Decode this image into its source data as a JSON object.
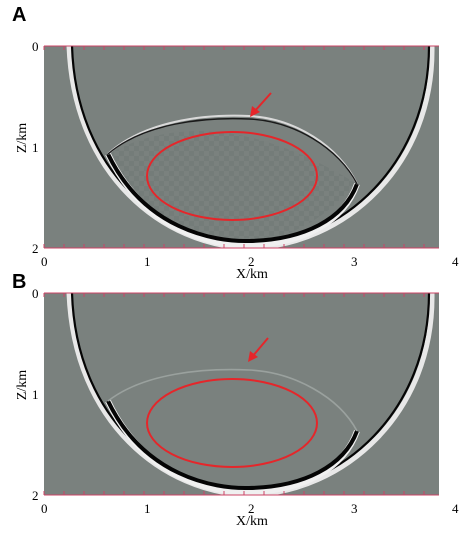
{
  "figure": {
    "panels": [
      {
        "letter": "A",
        "xlabel": "X/km",
        "ylabel": "Z/km",
        "xticks": [
          "0",
          "1",
          "2",
          "3",
          "4"
        ],
        "yticks": [
          "0",
          "1",
          "2"
        ]
      },
      {
        "letter": "B",
        "xlabel": "X/km",
        "ylabel": "Z/km",
        "xticks": [
          "0",
          "1",
          "2",
          "3",
          "4"
        ],
        "yticks": [
          "0",
          "1",
          "2"
        ]
      }
    ],
    "colors": {
      "background": "#7a817e",
      "wavefront": "#050505",
      "highlight": "#e8e8e8",
      "annotation": "#e5262a"
    }
  }
}
